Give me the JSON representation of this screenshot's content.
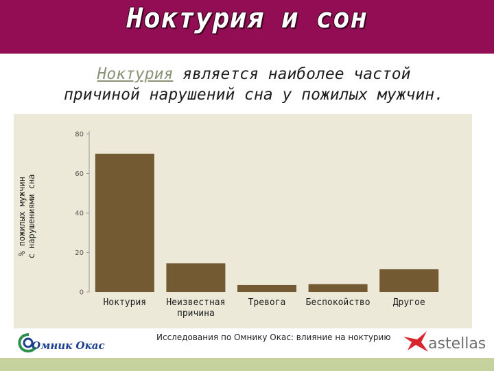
{
  "slide": {
    "title": "Ноктурия и сон",
    "subtitle_highlight": "Ноктурия",
    "subtitle_rest_line1": " является наиболее частой",
    "subtitle_line2": "причиной нарушений сна у пожилых мужчин.",
    "source": "Исследования по Омнику Окас: влияние на ноктурию",
    "logo_left_text": "Омник Окас",
    "logo_right_text": "astellas"
  },
  "chart_data": {
    "type": "bar",
    "title": "",
    "xlabel": "",
    "ylabel_line1": "% пожилых мужчин",
    "ylabel_line2": "с нарушениями сна",
    "categories": [
      [
        "Ноктурия"
      ],
      [
        "Неизвестная",
        "причина"
      ],
      [
        "Тревога"
      ],
      [
        "Беспокойство"
      ],
      [
        "Другое"
      ]
    ],
    "values": [
      70,
      14.5,
      3.5,
      4,
      11.5
    ],
    "yticks": [
      0,
      20,
      40,
      60,
      80
    ],
    "ylim": [
      0,
      80
    ],
    "grid": false,
    "bar_color": "#735a33"
  },
  "colors": {
    "title_bar": "#930d55",
    "chart_background": "#ece9d8",
    "footer_bar": "#c5d29e"
  }
}
